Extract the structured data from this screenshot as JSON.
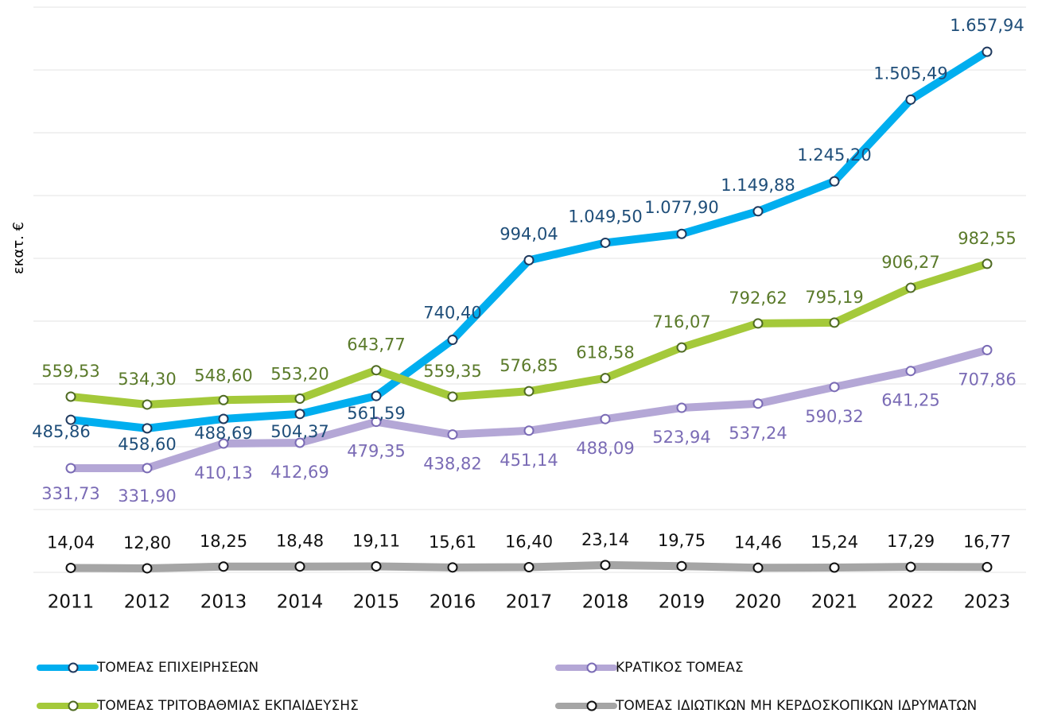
{
  "chart_data": {
    "type": "line",
    "y_label": "εκατ. €",
    "categories": [
      "2011",
      "2012",
      "2013",
      "2014",
      "2015",
      "2016",
      "2017",
      "2018",
      "2019",
      "2020",
      "2021",
      "2022",
      "2023"
    ],
    "ylim": [
      0,
      1800
    ],
    "yticks": [
      0,
      200,
      400,
      600,
      800,
      1000,
      1200,
      1400,
      1600,
      1800
    ],
    "grid": true,
    "legend": "bottom",
    "series": [
      {
        "name": "ΤΟΜΕΑΣ ΕΠΙΧΕΙΡΗΣΕΩΝ",
        "color": "#00aeef",
        "marker_color": "#1f3a5f",
        "label_color": "#1f4e79",
        "values": [
          485.86,
          458.6,
          488.69,
          504.37,
          561.59,
          740.4,
          994.04,
          1049.5,
          1077.9,
          1149.88,
          1245.2,
          1505.49,
          1657.94
        ],
        "value_labels": [
          "485,86",
          "458,60",
          "488,69",
          "504,37",
          "561,59",
          "740,40",
          "994,04",
          "1.049,50",
          "1.077,90",
          "1.149,88",
          "1.245,20",
          "1.505,49",
          "1.657,94"
        ]
      },
      {
        "name": "ΚΡΑΤΙΚΟΣ ΤΟΜΕΑΣ",
        "color": "#b4a7d6",
        "marker_color": "#7a6bb5",
        "label_color": "#7a6bb5",
        "values": [
          331.73,
          331.9,
          410.13,
          412.69,
          479.35,
          438.82,
          451.14,
          488.09,
          523.94,
          537.24,
          590.32,
          641.25,
          707.86
        ],
        "value_labels": [
          "331,73",
          "331,90",
          "410,13",
          "412,69",
          "479,35",
          "438,82",
          "451,14",
          "488,09",
          "523,94",
          "537,24",
          "590,32",
          "641,25",
          "707,86"
        ]
      },
      {
        "name": "ΤΟΜΕΑΣ ΤΡΙΤΟΒΑΘΜΙΑΣ ΕΚΠΑΙΔΕΥΣΗΣ",
        "color": "#a4c93a",
        "marker_color": "#4f6b22",
        "label_color": "#5a7a2a",
        "values": [
          559.53,
          534.3,
          548.6,
          553.2,
          643.77,
          559.35,
          576.85,
          618.58,
          716.07,
          792.62,
          795.19,
          906.27,
          982.55
        ],
        "value_labels": [
          "559,53",
          "534,30",
          "548,60",
          "553,20",
          "643,77",
          "559,35",
          "576,85",
          "618,58",
          "716,07",
          "792,62",
          "795,19",
          "906,27",
          "982,55"
        ]
      },
      {
        "name": "ΤΟΜΕΑΣ ΙΔΙΩΤΙΚΩΝ ΜΗ ΚΕΡΔΟΣΚΟΠΙΚΩΝ ΙΔΡΥΜΑΤΩΝ",
        "color": "#a5a5a5",
        "marker_color": "#111111",
        "label_color": "#111111",
        "values": [
          14.04,
          12.8,
          18.25,
          18.48,
          19.11,
          15.61,
          16.4,
          23.14,
          19.75,
          14.46,
          15.24,
          17.29,
          16.77
        ],
        "value_labels": [
          "14,04",
          "12,80",
          "18,25",
          "18,48",
          "19,11",
          "15,61",
          "16,40",
          "23,14",
          "19,75",
          "14,46",
          "15,24",
          "17,29",
          "16,77"
        ]
      }
    ]
  }
}
